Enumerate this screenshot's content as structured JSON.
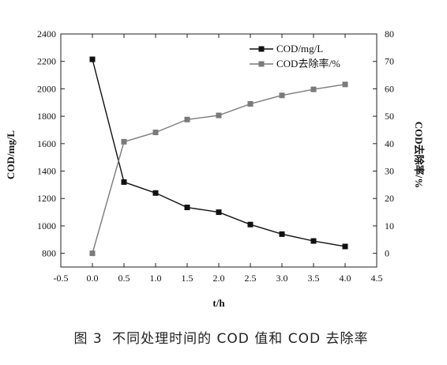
{
  "chart_data": {
    "type": "line",
    "x": [
      0.0,
      0.5,
      1.0,
      1.5,
      2.0,
      2.5,
      3.0,
      3.5,
      4.0
    ],
    "xlabel": "t/h",
    "xlim": [
      -0.5,
      4.5
    ],
    "xticks": [
      "-0.5",
      "0.0",
      "0.5",
      "1.0",
      "1.5",
      "2.0",
      "2.5",
      "3.0",
      "3.5",
      "4.0",
      "4.5"
    ],
    "ylabel_left": "COD/mg/L",
    "ylim_left": [
      700,
      2400
    ],
    "yticks_left": [
      "800",
      "1000",
      "1200",
      "1400",
      "1600",
      "1800",
      "2000",
      "2200",
      "2400"
    ],
    "ylabel_right": "COD去除率/%",
    "ylim_right": [
      -5,
      80
    ],
    "yticks_right": [
      "0",
      "10",
      "20",
      "30",
      "40",
      "50",
      "60",
      "70",
      "80"
    ],
    "series": [
      {
        "name": "COD/mg/L",
        "axis": "left",
        "color": "#111111",
        "marker": "square",
        "values": [
          2215,
          1320,
          1240,
          1135,
          1100,
          1010,
          940,
          890,
          850
        ]
      },
      {
        "name": "COD去除率/%",
        "axis": "right",
        "color": "#7a7a7a",
        "marker": "square",
        "values": [
          0,
          40.7,
          44.1,
          48.8,
          50.3,
          54.5,
          57.6,
          59.8,
          61.6
        ]
      }
    ],
    "legend_position": "top-right",
    "grid": false
  },
  "caption": {
    "label": "图 3",
    "text": "不同处理时间的 COD 值和 COD 去除率"
  }
}
